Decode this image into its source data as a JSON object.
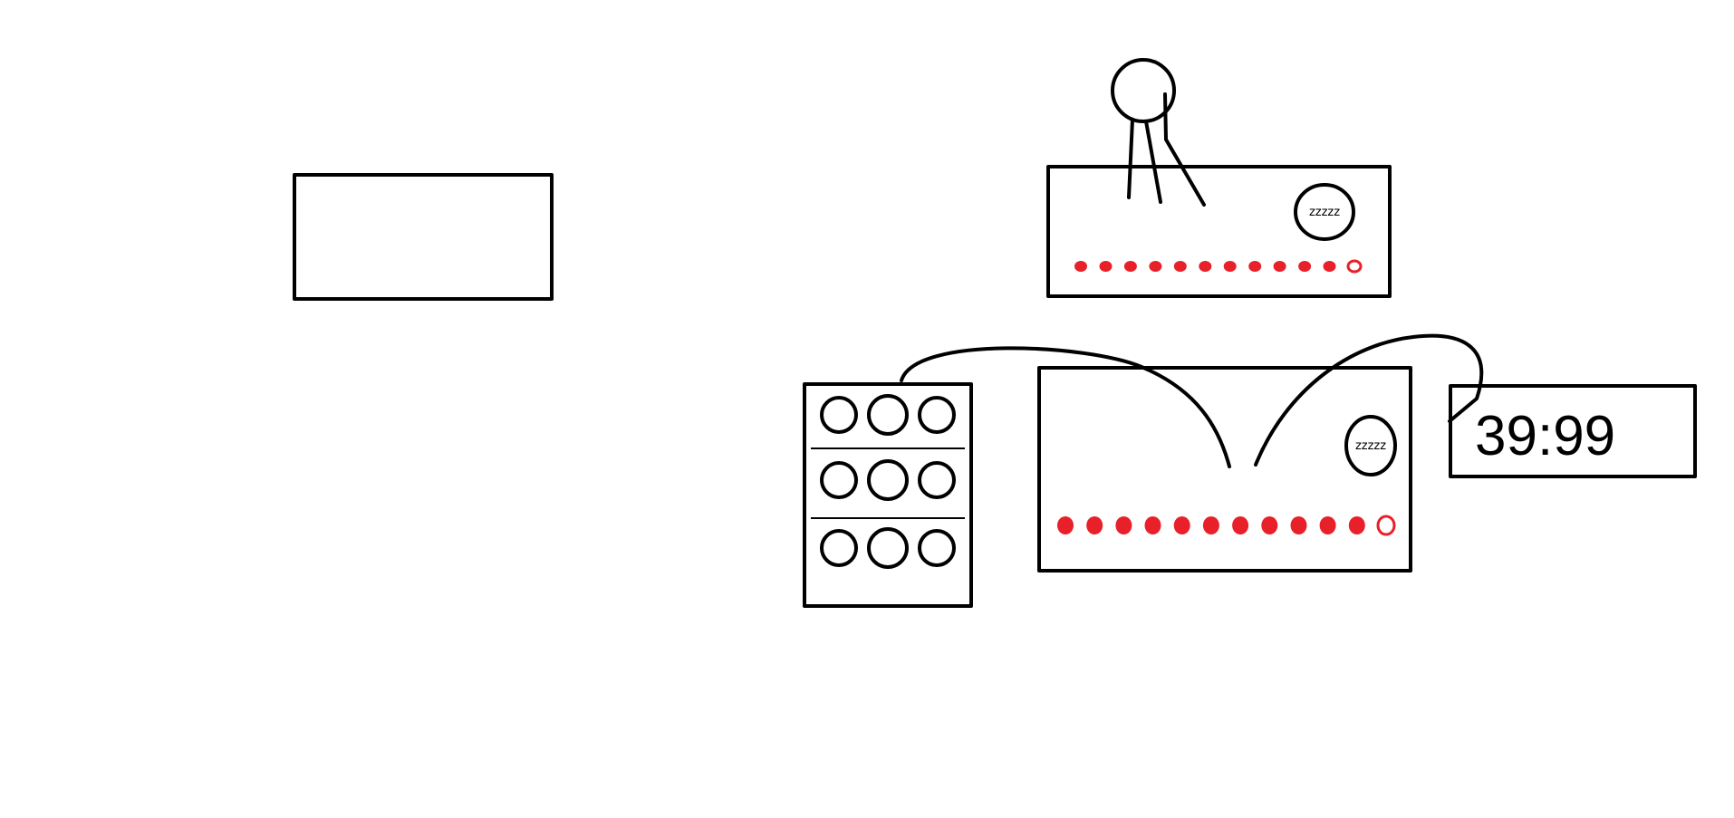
{
  "colors": {
    "ink": "#000000",
    "indicator": "#e8202a",
    "background": "#ffffff"
  },
  "top_device": {
    "sleep_label": "zzzzz",
    "indicator_count": 12
  },
  "bottom_device": {
    "sleep_label": "zzzzz",
    "indicator_count": 12
  },
  "clock_display": {
    "time": "39:99"
  },
  "keypad": {
    "rows": 3,
    "buttons_per_row": 3
  }
}
